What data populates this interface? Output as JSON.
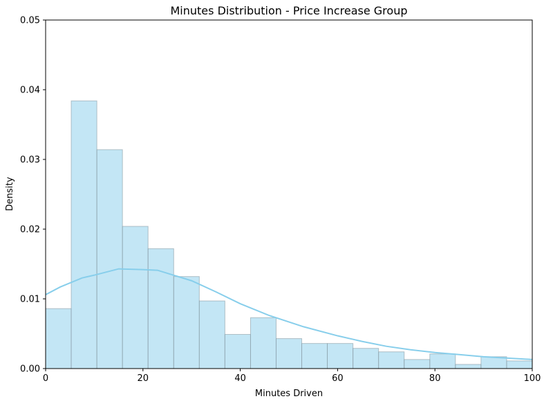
{
  "chart_data": {
    "type": "bar",
    "title": "Minutes Distribution - Price Increase Group",
    "xlabel": "Minutes Driven",
    "ylabel": "Density",
    "xlim": [
      0,
      100
    ],
    "ylim": [
      0,
      0.05
    ],
    "x_ticks": [
      0,
      20,
      40,
      60,
      80,
      100
    ],
    "x_tick_labels": [
      "0",
      "20",
      "40",
      "60",
      "80",
      "100"
    ],
    "y_ticks": [
      0,
      0.01,
      0.02,
      0.03,
      0.04,
      0.05
    ],
    "y_tick_labels": [
      "0.00",
      "0.01",
      "0.02",
      "0.03",
      "0.04",
      "0.05"
    ],
    "grid": false,
    "legend": "none",
    "bar_color": "#87ceeb",
    "bins": [
      {
        "x0": 0.0,
        "x1": 5.26,
        "density": 0.0086
      },
      {
        "x0": 5.26,
        "x1": 10.53,
        "density": 0.0384
      },
      {
        "x0": 10.53,
        "x1": 15.79,
        "density": 0.0314
      },
      {
        "x0": 15.79,
        "x1": 21.05,
        "density": 0.0204
      },
      {
        "x0": 21.05,
        "x1": 26.32,
        "density": 0.0172
      },
      {
        "x0": 26.32,
        "x1": 31.58,
        "density": 0.0132
      },
      {
        "x0": 31.58,
        "x1": 36.84,
        "density": 0.0097
      },
      {
        "x0": 36.84,
        "x1": 42.11,
        "density": 0.0049
      },
      {
        "x0": 42.11,
        "x1": 47.37,
        "density": 0.0073
      },
      {
        "x0": 47.37,
        "x1": 52.63,
        "density": 0.0043
      },
      {
        "x0": 52.63,
        "x1": 57.89,
        "density": 0.0036
      },
      {
        "x0": 57.89,
        "x1": 63.16,
        "density": 0.0036
      },
      {
        "x0": 63.16,
        "x1": 68.42,
        "density": 0.0029
      },
      {
        "x0": 68.42,
        "x1": 73.68,
        "density": 0.0024
      },
      {
        "x0": 73.68,
        "x1": 78.95,
        "density": 0.0013
      },
      {
        "x0": 78.95,
        "x1": 84.21,
        "density": 0.0021
      },
      {
        "x0": 84.21,
        "x1": 89.47,
        "density": 0.0006
      },
      {
        "x0": 89.47,
        "x1": 94.74,
        "density": 0.0017
      },
      {
        "x0": 94.74,
        "x1": 100.0,
        "density": 0.0011
      }
    ],
    "kde": {
      "color": "#87ceeb",
      "x": [
        0,
        3,
        7.5,
        10,
        15,
        20,
        23,
        30,
        35,
        40,
        46,
        53,
        60,
        65,
        70,
        75,
        80,
        85,
        90,
        95,
        100
      ],
      "y": [
        0.0106,
        0.0117,
        0.013,
        0.0134,
        0.0143,
        0.0142,
        0.0141,
        0.0126,
        0.011,
        0.0093,
        0.0076,
        0.006,
        0.0047,
        0.0039,
        0.0032,
        0.0027,
        0.0023,
        0.002,
        0.0017,
        0.0015,
        0.0013
      ]
    }
  }
}
